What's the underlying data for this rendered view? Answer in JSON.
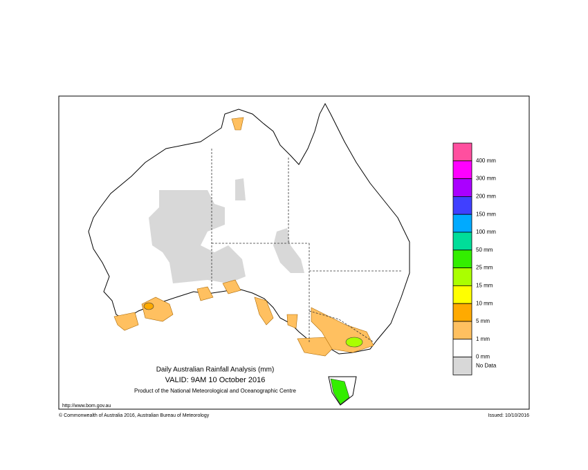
{
  "header": {
    "title": "Daily Australian Rainfall Analysis (mm)",
    "valid": "VALID: 9AM 10 October 2016",
    "producer": "Product of the National Meteorological and Oceanographic Centre"
  },
  "footer": {
    "url": "http://www.bom.gov.au",
    "copyright": "© Commonwealth of Australia 2016, Australian Bureau of Meteorology",
    "issued": "Issued: 10/10/2016"
  },
  "legend": {
    "colors": [
      "#ff4f9f",
      "#ff00ff",
      "#aa00ff",
      "#4040ff",
      "#00aaff",
      "#00dd99",
      "#33ee00",
      "#aaff00",
      "#ffff00",
      "#ffaa00",
      "#ffc060",
      "#ffffff",
      "#d8d8d8"
    ],
    "labels": [
      "400 mm",
      "300 mm",
      "200 mm",
      "150 mm",
      "100 mm",
      "50 mm",
      "25 mm",
      "15 mm",
      "10 mm",
      "5 mm",
      "1 mm",
      "0 mm",
      "No Data"
    ]
  }
}
